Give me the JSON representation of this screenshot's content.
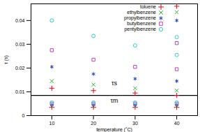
{
  "chart_data": {
    "type": "scatter",
    "x_label": "temperature (˚C)",
    "y_label": "τ (s)",
    "xlim": [
      5,
      45
    ],
    "xticks": [
      10,
      20,
      30,
      40
    ],
    "ylim": [
      0,
      0.047
    ],
    "yticks": [
      0,
      0.01,
      0.02,
      0.03,
      0.04
    ],
    "legend": "top-right",
    "series": [
      {
        "name": "toluene",
        "color": "#e8001a",
        "marker": "plus",
        "x": [
          10,
          10,
          20,
          20,
          30,
          30,
          40,
          40,
          40
        ],
        "values": [
          0.0115,
          0.0035,
          0.0105,
          0.0035,
          0.0095,
          0.0035,
          0.046,
          0.0085,
          0.0035
        ]
      },
      {
        "name": "ethylbenzene",
        "color": "#2db82d",
        "marker": "times",
        "x": [
          10,
          10,
          20,
          20,
          30,
          30,
          40,
          40,
          40
        ],
        "values": [
          0.0145,
          0.004,
          0.013,
          0.004,
          0.0115,
          0.004,
          0.0435,
          0.0105,
          0.004
        ]
      },
      {
        "name": "propylbenzene",
        "color": "#1f3fbf",
        "marker": "asterisk",
        "x": [
          10,
          10,
          20,
          20,
          30,
          30,
          40,
          40,
          40
        ],
        "values": [
          0.0205,
          0.0045,
          0.0175,
          0.0045,
          0.0155,
          0.0045,
          0.04,
          0.0145,
          0.0045
        ]
      },
      {
        "name": "butylbenzene",
        "color": "#c040c0",
        "marker": "square",
        "x": [
          10,
          10,
          20,
          20,
          30,
          30,
          40,
          40,
          40
        ],
        "values": [
          0.0275,
          0.005,
          0.0235,
          0.005,
          0.0205,
          0.005,
          0.0305,
          0.0195,
          0.005
        ]
      },
      {
        "name": "pentylbenzene",
        "color": "#33cccc",
        "marker": "circle",
        "x": [
          10,
          10,
          20,
          20,
          30,
          30,
          40,
          40,
          40
        ],
        "values": [
          0.04,
          0.0055,
          0.0335,
          0.0055,
          0.0295,
          0.0055,
          0.033,
          0.0255,
          0.0055
        ]
      }
    ],
    "reference_line": {
      "value": 0.0085
    },
    "annotations": [
      {
        "text": "τs",
        "x": 25,
        "y": 0.0135
      },
      {
        "text": "τm",
        "x": 25,
        "y": 0.0062
      }
    ]
  }
}
